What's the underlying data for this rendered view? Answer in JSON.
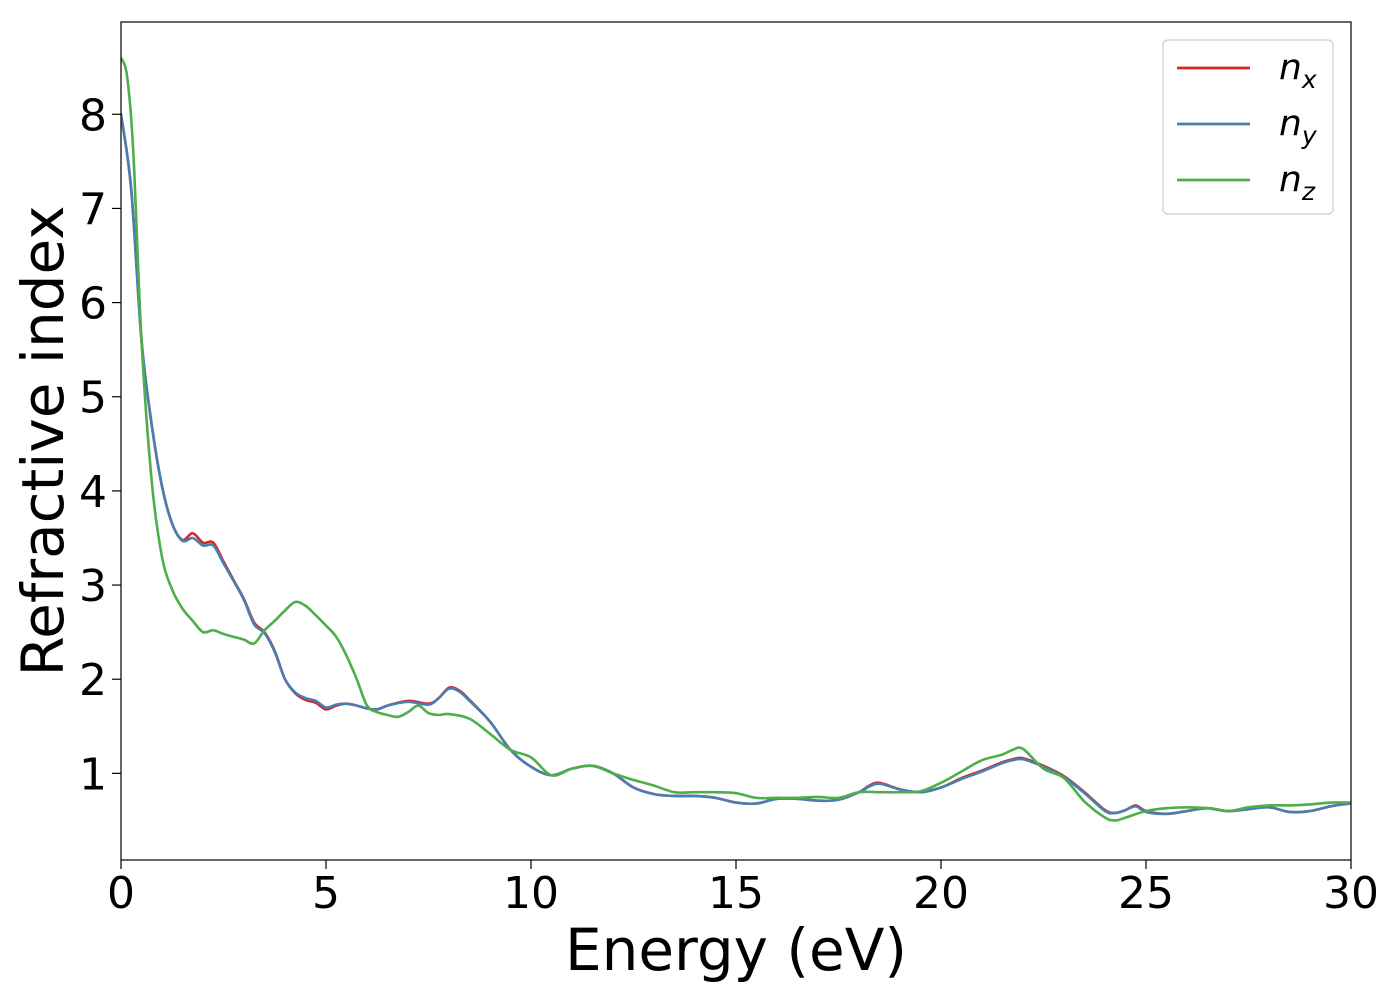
{
  "chart_data": {
    "type": "line",
    "title": "",
    "xlabel": "Energy (eV)",
    "ylabel": "Refractive index",
    "xlim": [
      0,
      30
    ],
    "ylim": [
      0.08,
      8.98
    ],
    "xticks": [
      0,
      5,
      10,
      15,
      20,
      25,
      30
    ],
    "yticks": [
      1,
      2,
      3,
      4,
      5,
      6,
      7,
      8
    ],
    "grid": false,
    "legend_position": "top-right",
    "series": [
      {
        "name": "n_x",
        "label_base": "n",
        "label_sub": "x",
        "color": "#d62728",
        "x": [
          0,
          0.25,
          0.5,
          0.75,
          1.0,
          1.25,
          1.5,
          1.75,
          2.0,
          2.25,
          2.5,
          2.75,
          3.0,
          3.25,
          3.5,
          3.75,
          4.0,
          4.25,
          4.5,
          4.75,
          5.0,
          5.25,
          5.5,
          5.75,
          6.0,
          6.25,
          6.5,
          7.0,
          7.5,
          7.75,
          8.0,
          8.25,
          8.5,
          9.0,
          9.5,
          10.0,
          10.5,
          11.0,
          11.5,
          12.0,
          12.5,
          13.0,
          13.5,
          14.0,
          14.5,
          15.0,
          15.5,
          16.0,
          16.5,
          17.0,
          17.5,
          18.0,
          18.25,
          18.5,
          19.0,
          19.5,
          20.0,
          20.5,
          21.0,
          21.5,
          21.75,
          22.0,
          22.5,
          23.0,
          23.5,
          24.0,
          24.25,
          24.5,
          24.75,
          25.0,
          25.5,
          26.0,
          26.5,
          27.0,
          27.5,
          28.0,
          28.5,
          29.0,
          29.5,
          30.0
        ],
        "y": [
          8.0,
          7.2,
          5.6,
          4.7,
          4.05,
          3.65,
          3.48,
          3.55,
          3.45,
          3.45,
          3.25,
          3.05,
          2.85,
          2.6,
          2.5,
          2.3,
          2.0,
          1.85,
          1.78,
          1.75,
          1.68,
          1.72,
          1.74,
          1.72,
          1.69,
          1.68,
          1.72,
          1.77,
          1.74,
          1.8,
          1.91,
          1.88,
          1.78,
          1.55,
          1.25,
          1.07,
          0.98,
          1.05,
          1.08,
          1.0,
          0.85,
          0.78,
          0.76,
          0.76,
          0.74,
          0.69,
          0.68,
          0.73,
          0.73,
          0.71,
          0.72,
          0.8,
          0.87,
          0.9,
          0.83,
          0.8,
          0.85,
          0.95,
          1.03,
          1.12,
          1.15,
          1.16,
          1.08,
          0.97,
          0.8,
          0.61,
          0.58,
          0.61,
          0.66,
          0.6,
          0.57,
          0.6,
          0.63,
          0.6,
          0.62,
          0.64,
          0.59,
          0.6,
          0.65,
          0.69
        ]
      },
      {
        "name": "n_y",
        "label_base": "n",
        "label_sub": "y",
        "color": "#4a7eb0",
        "x": [
          0,
          0.25,
          0.5,
          0.75,
          1.0,
          1.25,
          1.5,
          1.75,
          2.0,
          2.25,
          2.5,
          2.75,
          3.0,
          3.25,
          3.5,
          3.75,
          4.0,
          4.25,
          4.5,
          4.75,
          5.0,
          5.25,
          5.5,
          5.75,
          6.0,
          6.25,
          6.5,
          7.0,
          7.5,
          7.75,
          8.0,
          8.25,
          8.5,
          9.0,
          9.5,
          10.0,
          10.5,
          11.0,
          11.5,
          12.0,
          12.5,
          13.0,
          13.5,
          14.0,
          14.5,
          15.0,
          15.5,
          16.0,
          16.5,
          17.0,
          17.5,
          18.0,
          18.25,
          18.5,
          19.0,
          19.5,
          20.0,
          20.5,
          21.0,
          21.5,
          21.75,
          22.0,
          22.5,
          23.0,
          23.5,
          24.0,
          24.25,
          24.5,
          24.75,
          25.0,
          25.5,
          26.0,
          26.5,
          27.0,
          27.5,
          28.0,
          28.5,
          29.0,
          29.5,
          30.0
        ],
        "y": [
          8.0,
          7.2,
          5.6,
          4.7,
          4.05,
          3.65,
          3.47,
          3.5,
          3.42,
          3.42,
          3.23,
          3.04,
          2.84,
          2.58,
          2.49,
          2.29,
          2.0,
          1.86,
          1.8,
          1.77,
          1.7,
          1.73,
          1.74,
          1.72,
          1.69,
          1.68,
          1.72,
          1.76,
          1.73,
          1.8,
          1.9,
          1.87,
          1.77,
          1.55,
          1.25,
          1.07,
          0.98,
          1.05,
          1.08,
          1.0,
          0.85,
          0.78,
          0.76,
          0.76,
          0.74,
          0.69,
          0.68,
          0.73,
          0.73,
          0.71,
          0.72,
          0.8,
          0.86,
          0.89,
          0.83,
          0.8,
          0.85,
          0.94,
          1.02,
          1.11,
          1.14,
          1.15,
          1.07,
          0.96,
          0.79,
          0.6,
          0.58,
          0.61,
          0.65,
          0.59,
          0.57,
          0.6,
          0.63,
          0.6,
          0.62,
          0.64,
          0.59,
          0.6,
          0.65,
          0.68
        ]
      },
      {
        "name": "n_z",
        "label_base": "n",
        "label_sub": "z",
        "color": "#4daf4a",
        "x": [
          0,
          0.15,
          0.3,
          0.5,
          0.75,
          1.0,
          1.25,
          1.5,
          1.75,
          2.0,
          2.25,
          2.5,
          2.75,
          3.0,
          3.25,
          3.5,
          3.75,
          4.0,
          4.25,
          4.5,
          4.75,
          5.0,
          5.25,
          5.5,
          5.75,
          6.0,
          6.25,
          6.5,
          6.75,
          7.0,
          7.25,
          7.5,
          7.75,
          8.0,
          8.5,
          9.0,
          9.5,
          10.0,
          10.5,
          11.0,
          11.5,
          12.0,
          12.5,
          13.0,
          13.5,
          14.0,
          14.5,
          15.0,
          15.5,
          16.0,
          16.5,
          17.0,
          17.5,
          18.0,
          18.5,
          19.0,
          19.5,
          20.0,
          20.5,
          21.0,
          21.5,
          21.75,
          22.0,
          22.5,
          23.0,
          23.5,
          24.0,
          24.25,
          24.5,
          25.0,
          25.5,
          26.0,
          26.5,
          27.0,
          27.5,
          28.0,
          28.5,
          29.0,
          29.5,
          30.0
        ],
        "y": [
          8.6,
          8.4,
          7.6,
          5.6,
          4.1,
          3.3,
          2.95,
          2.75,
          2.62,
          2.5,
          2.52,
          2.48,
          2.45,
          2.42,
          2.38,
          2.52,
          2.62,
          2.73,
          2.82,
          2.78,
          2.68,
          2.57,
          2.45,
          2.25,
          2.0,
          1.72,
          1.65,
          1.62,
          1.6,
          1.65,
          1.72,
          1.64,
          1.62,
          1.63,
          1.58,
          1.42,
          1.25,
          1.17,
          0.98,
          1.05,
          1.08,
          1.0,
          0.93,
          0.87,
          0.8,
          0.8,
          0.8,
          0.79,
          0.74,
          0.74,
          0.74,
          0.75,
          0.74,
          0.8,
          0.8,
          0.8,
          0.81,
          0.9,
          1.02,
          1.14,
          1.2,
          1.25,
          1.26,
          1.05,
          0.95,
          0.7,
          0.53,
          0.5,
          0.53,
          0.6,
          0.63,
          0.64,
          0.63,
          0.6,
          0.64,
          0.66,
          0.66,
          0.67,
          0.69,
          0.69
        ]
      }
    ]
  }
}
